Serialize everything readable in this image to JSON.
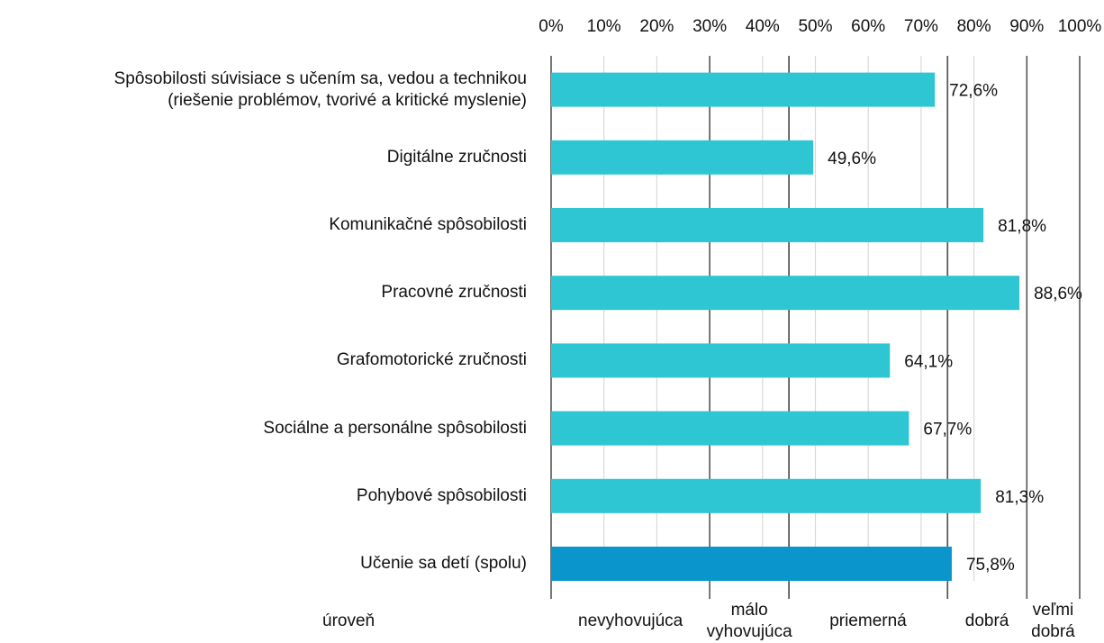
{
  "chart_data": {
    "type": "hbar",
    "categories": [
      "Spôsobilosti súvisiace s učením sa, vedou a technikou\n(riešenie problémov, tvorivé a kritické myslenie)",
      "Digitálne zručnosti",
      "Komunikačné spôsobilosti",
      "Pracovné zručnosti",
      "Grafomotorické zručnosti",
      "Sociálne a personálne spôsobilosti",
      "Pohybové spôsobilosti",
      "Učenie sa detí (spolu)"
    ],
    "values": [
      72.6,
      49.6,
      81.8,
      88.6,
      64.1,
      67.7,
      81.3,
      75.8
    ],
    "value_labels": [
      "72,6%",
      "49,6%",
      "81,8%",
      "88,6%",
      "64,1%",
      "67,7%",
      "81,3%",
      "75,8%"
    ],
    "colors": [
      "#2ec6d3",
      "#2ec6d3",
      "#2ec6d3",
      "#2ec6d3",
      "#2ec6d3",
      "#2ec6d3",
      "#2ec6d3",
      "#0a96cc"
    ],
    "xlim": [
      0,
      100
    ],
    "xticks": [
      {
        "value": 0,
        "label": "0%"
      },
      {
        "value": 10,
        "label": "10%"
      },
      {
        "value": 20,
        "label": "20%"
      },
      {
        "value": 30,
        "label": "30%"
      },
      {
        "value": 40,
        "label": "40%"
      },
      {
        "value": 50,
        "label": "50%"
      },
      {
        "value": 60,
        "label": "60%"
      },
      {
        "value": 70,
        "label": "70%"
      },
      {
        "value": 80,
        "label": "80%"
      },
      {
        "value": 90,
        "label": "90%"
      },
      {
        "value": 100,
        "label": "100%"
      }
    ],
    "grid": true,
    "level_axis_label": "úroveň",
    "levels": [
      {
        "label": "nevyhovujúca",
        "from": 0,
        "to": 30
      },
      {
        "label": "málo\nvyhovujúca",
        "from": 30,
        "to": 45
      },
      {
        "label": "priemerná",
        "from": 45,
        "to": 75
      },
      {
        "label": "dobrá",
        "from": 75,
        "to": 90
      },
      {
        "label": "veľmi\ndobrá",
        "from": 90,
        "to": 100
      }
    ]
  }
}
